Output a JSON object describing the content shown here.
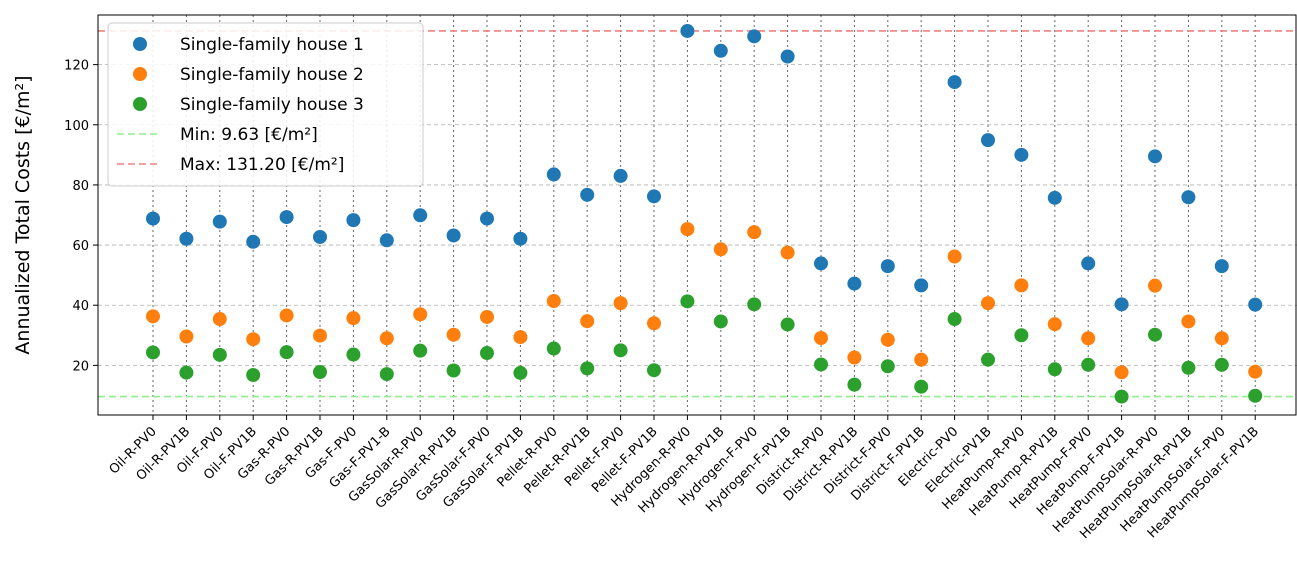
{
  "chart_data": {
    "type": "scatter",
    "title": "",
    "xlabel": "",
    "ylabel": "Annualized Total Costs [€/m²]",
    "ylim": [
      3.5,
      136.5
    ],
    "yticks": [
      20,
      40,
      60,
      80,
      100,
      120
    ],
    "grid": true,
    "legend_position": "top-left",
    "categories": [
      "Oil-R-PV0",
      "Oil-R-PV1B",
      "Oil-F-PV0",
      "Oil-F-PV1B",
      "Gas-R-PV0",
      "Gas-R-PV1B",
      "Gas-F-PV0",
      "Gas-F-PV1-B",
      "GasSolar-R-PV0",
      "GasSolar-R-PV1B",
      "GasSolar-F-PV0",
      "GasSolar-F-PV1B",
      "Pellet-R-PV0",
      "Pellet-R-PV1B",
      "Pellet-F-PV0",
      "Pellet-F-PV1B",
      "Hydrogen-R-PV0",
      "Hydrogen-R-PV1B",
      "Hydrogen-F-PV0",
      "Hydrogen-F-PV1B",
      "District-R-PV0",
      "District-R-PV1B",
      "District-F-PV0",
      "District-F-PV1B",
      "Electric-PV0",
      "Electric-PV1B",
      "HeatPump-R-PV0",
      "HeatPump-R-PV1B",
      "HeatPump-F-PV0",
      "HeatPump-F-PV1B",
      "HeatPumpSolar-R-PV0",
      "HeatPumpSolar-R-PV1B",
      "HeatPumpSolar-F-PV0",
      "HeatPumpSolar-F-PV1B"
    ],
    "series": [
      {
        "name": "Single-family house 1",
        "color": "#1f77b4",
        "values": [
          68.8,
          62.1,
          67.8,
          61.1,
          69.3,
          62.7,
          68.3,
          61.6,
          69.9,
          63.2,
          68.8,
          62.1,
          83.5,
          76.7,
          83.0,
          76.2,
          131.2,
          124.6,
          129.4,
          122.7,
          53.9,
          47.2,
          53.0,
          46.6,
          114.2,
          94.9,
          90.0,
          75.7,
          53.9,
          40.3,
          89.5,
          75.9,
          53.0,
          40.2
        ]
      },
      {
        "name": "Single-family house 2",
        "color": "#ff7f0e",
        "values": [
          36.3,
          29.6,
          35.4,
          28.7,
          36.6,
          29.9,
          35.7,
          29.0,
          37.0,
          30.2,
          36.1,
          29.4,
          41.4,
          34.7,
          40.7,
          34.0,
          65.3,
          58.6,
          64.3,
          57.5,
          29.1,
          22.6,
          28.5,
          21.9,
          56.2,
          40.7,
          46.6,
          33.7,
          29.0,
          17.7,
          46.5,
          34.6,
          29.0,
          17.9
        ]
      },
      {
        "name": "Single-family house 3",
        "color": "#2ca02c",
        "values": [
          24.3,
          17.6,
          23.5,
          16.8,
          24.4,
          17.8,
          23.6,
          17.1,
          24.9,
          18.3,
          24.1,
          17.5,
          25.6,
          19.0,
          25.0,
          18.4,
          41.3,
          34.6,
          40.3,
          33.6,
          20.3,
          13.6,
          19.7,
          12.9,
          35.4,
          21.9,
          30.0,
          18.7,
          20.2,
          9.63,
          30.2,
          19.2,
          20.2,
          9.9
        ]
      }
    ],
    "reference_lines": [
      {
        "label": "Min: 9.63 [€/m²]",
        "value": 9.63,
        "color": "#90ee90"
      },
      {
        "label": "Max: 131.20 [€/m²]",
        "value": 131.2,
        "color": "#f08080"
      }
    ]
  }
}
